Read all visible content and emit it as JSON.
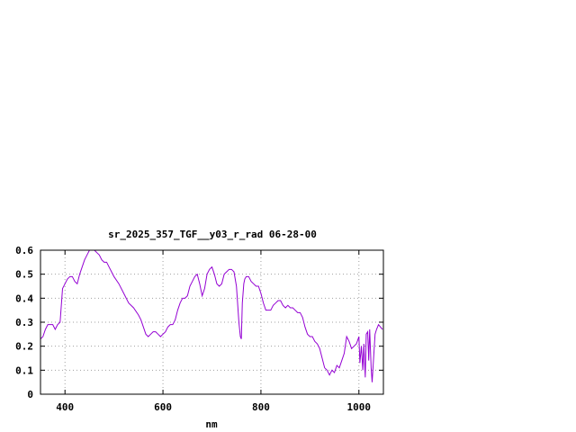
{
  "chart_data": {
    "type": "line",
    "title": "sr_2025_357_TGF__y03_r_rad 06-28-00",
    "xlabel": "nm",
    "ylabel": "",
    "xlim": [
      350,
      1050
    ],
    "ylim": [
      0,
      0.6
    ],
    "x_ticks": [
      {
        "value": 400,
        "label": "400"
      },
      {
        "value": 600,
        "label": "600"
      },
      {
        "value": 800,
        "label": "800"
      },
      {
        "value": 1000,
        "label": "1000"
      }
    ],
    "y_ticks": [
      {
        "value": 0,
        "label": "0"
      },
      {
        "value": 0.1,
        "label": "0.1"
      },
      {
        "value": 0.2,
        "label": "0.2"
      },
      {
        "value": 0.3,
        "label": "0.3"
      },
      {
        "value": 0.4,
        "label": "0.4"
      },
      {
        "value": 0.5,
        "label": "0.5"
      },
      {
        "value": 0.6,
        "label": "0.6"
      }
    ],
    "grid": true,
    "legend": "none",
    "colors": {
      "line": "#9400d3",
      "axis": "#000000",
      "grid": "#a0a0a0"
    },
    "series": [
      {
        "x": [
          350,
          355,
          360,
          365,
          370,
          375,
          380,
          385,
          390,
          395,
          400,
          405,
          410,
          415,
          420,
          425,
          430,
          435,
          440,
          445,
          450,
          455,
          460,
          465,
          470,
          475,
          480,
          485,
          490,
          495,
          500,
          510,
          520,
          530,
          540,
          550,
          555,
          560,
          565,
          570,
          575,
          580,
          585,
          590,
          595,
          600,
          605,
          610,
          615,
          620,
          625,
          630,
          635,
          640,
          645,
          650,
          655,
          660,
          665,
          670,
          675,
          680,
          685,
          690,
          695,
          700,
          705,
          710,
          715,
          720,
          725,
          730,
          735,
          740,
          745,
          750,
          755,
          758,
          760,
          762,
          765,
          767,
          770,
          775,
          780,
          785,
          790,
          795,
          800,
          805,
          810,
          815,
          820,
          825,
          830,
          835,
          840,
          845,
          850,
          855,
          860,
          865,
          870,
          875,
          880,
          885,
          890,
          895,
          900,
          905,
          910,
          915,
          920,
          925,
          930,
          935,
          940,
          945,
          950,
          955,
          960,
          965,
          970,
          975,
          980,
          985,
          990,
          995,
          1000,
          1002,
          1005,
          1008,
          1010,
          1013,
          1015,
          1018,
          1020,
          1022,
          1025,
          1027,
          1030,
          1033,
          1036,
          1040,
          1044,
          1048
        ],
        "y": [
          0.23,
          0.24,
          0.27,
          0.29,
          0.29,
          0.29,
          0.27,
          0.29,
          0.3,
          0.44,
          0.46,
          0.48,
          0.49,
          0.49,
          0.47,
          0.46,
          0.5,
          0.53,
          0.56,
          0.58,
          0.6,
          0.6,
          0.6,
          0.59,
          0.58,
          0.56,
          0.55,
          0.55,
          0.53,
          0.51,
          0.49,
          0.46,
          0.42,
          0.38,
          0.36,
          0.33,
          0.31,
          0.28,
          0.25,
          0.24,
          0.25,
          0.26,
          0.26,
          0.25,
          0.24,
          0.25,
          0.26,
          0.28,
          0.29,
          0.29,
          0.31,
          0.35,
          0.38,
          0.4,
          0.4,
          0.41,
          0.45,
          0.47,
          0.49,
          0.5,
          0.46,
          0.41,
          0.44,
          0.5,
          0.52,
          0.53,
          0.5,
          0.46,
          0.45,
          0.46,
          0.5,
          0.51,
          0.52,
          0.52,
          0.51,
          0.45,
          0.3,
          0.24,
          0.23,
          0.38,
          0.46,
          0.48,
          0.49,
          0.49,
          0.47,
          0.46,
          0.45,
          0.45,
          0.42,
          0.38,
          0.35,
          0.35,
          0.35,
          0.37,
          0.38,
          0.39,
          0.39,
          0.37,
          0.36,
          0.37,
          0.36,
          0.36,
          0.35,
          0.34,
          0.34,
          0.32,
          0.28,
          0.25,
          0.24,
          0.24,
          0.22,
          0.21,
          0.19,
          0.15,
          0.11,
          0.1,
          0.08,
          0.1,
          0.09,
          0.12,
          0.11,
          0.14,
          0.17,
          0.24,
          0.22,
          0.19,
          0.2,
          0.21,
          0.24,
          0.13,
          0.2,
          0.1,
          0.21,
          0.07,
          0.25,
          0.26,
          0.14,
          0.27,
          0.11,
          0.05,
          0.15,
          0.25,
          0.27,
          0.29,
          0.28,
          0.27
        ]
      }
    ]
  }
}
